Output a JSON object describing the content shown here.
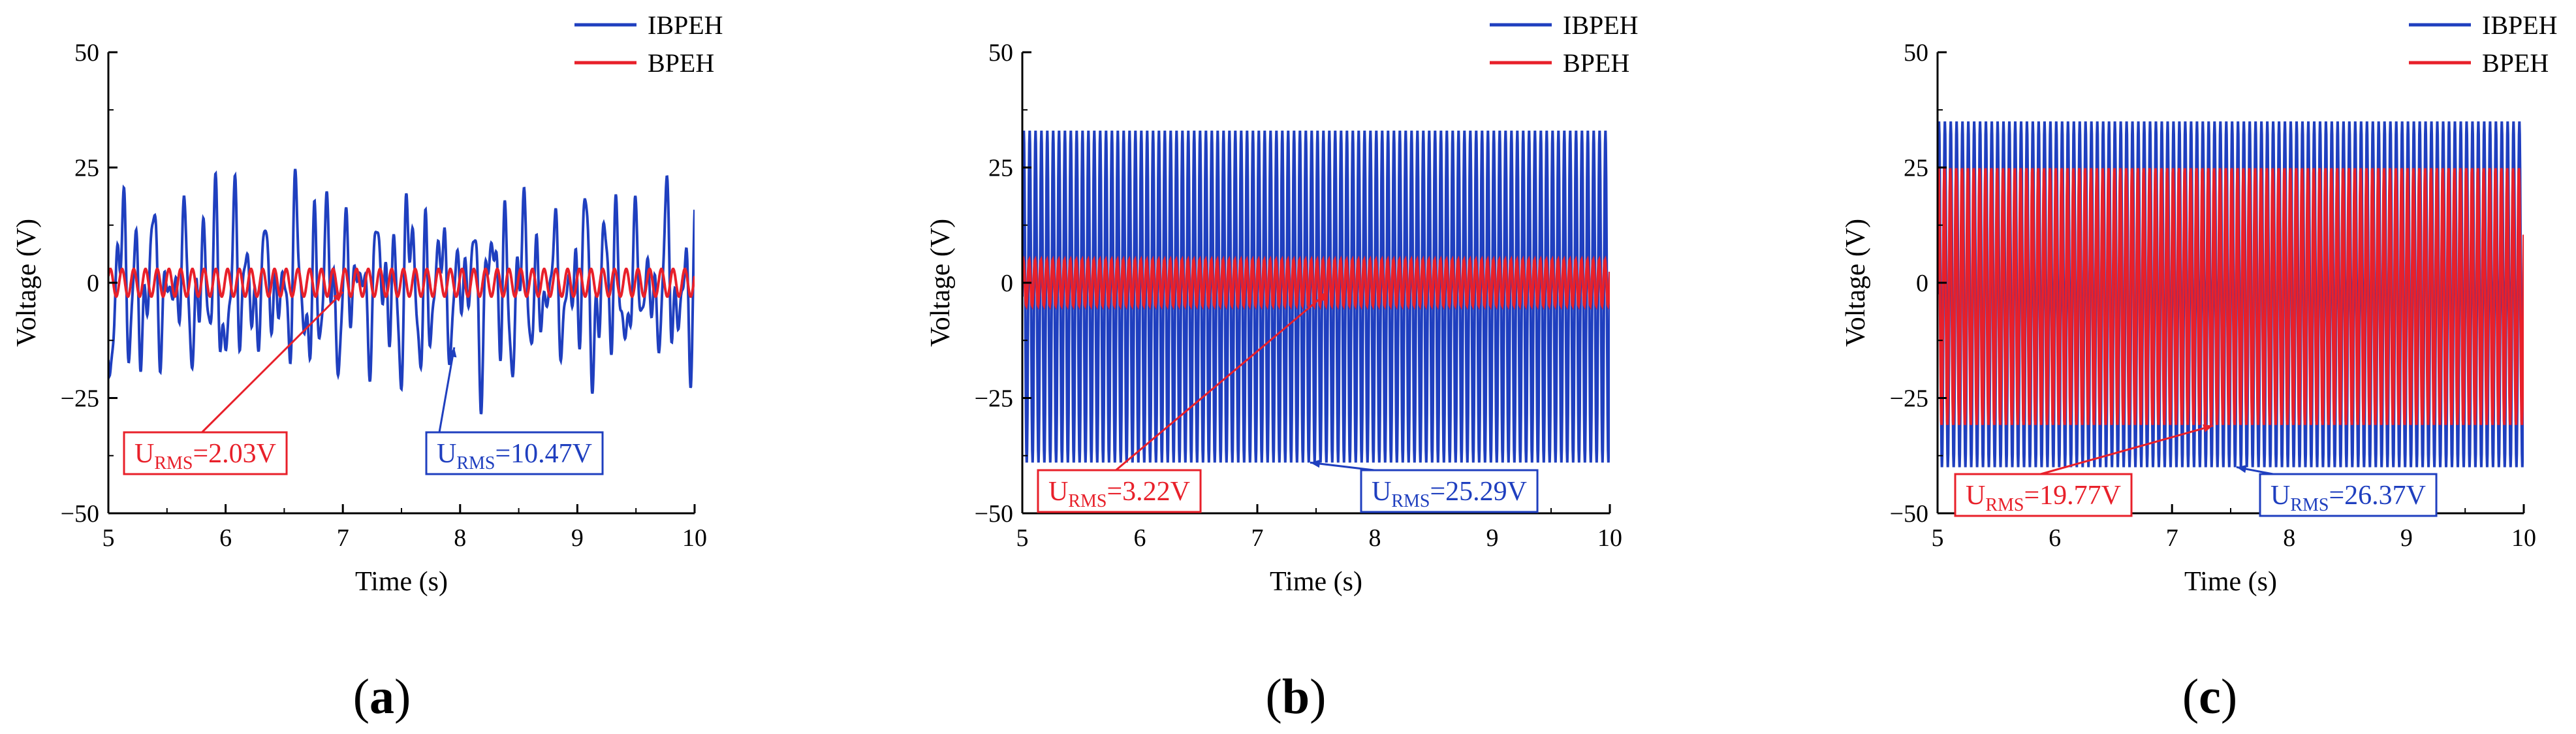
{
  "figure": {
    "captions": [
      "(",
      "a",
      ")",
      "(",
      "b",
      ")",
      "(",
      "c",
      ")"
    ],
    "colors": {
      "ibpeh": "#1f3fbf",
      "bpeh": "#e8202a",
      "axis": "#000000",
      "anno_bg": "#ffffff"
    }
  },
  "chart_data": [
    {
      "type": "line",
      "panel": "a",
      "caption": "(a)",
      "title": "",
      "xlabel": "Time (s)",
      "ylabel": "Voltage (V)",
      "xlim": [
        5,
        10
      ],
      "ylim": [
        -50,
        50
      ],
      "xticks": [
        "5",
        "6",
        "7",
        "8",
        "9",
        "10"
      ],
      "yticks": [
        "50",
        "25",
        "0",
        "−25",
        "−50"
      ],
      "legend": {
        "position": "top-right",
        "entries": [
          "IBPEH",
          "BPEH"
        ]
      },
      "series": [
        {
          "name": "IBPEH",
          "color": "#1f3fbf",
          "signal": "irregular",
          "approx_min": -24,
          "approx_max": 22,
          "rms_label": "10.47V"
        },
        {
          "name": "BPEH",
          "color": "#e8202a",
          "signal": "periodic",
          "approx_min": -3,
          "approx_max": 3,
          "oscillations_in_window": 50,
          "rms_label": "2.03V"
        }
      ],
      "annotations": [
        {
          "series": "BPEH",
          "prefix": "U",
          "subscript": "RMS",
          "value": "=2.03V",
          "points_to": [
            7.0,
            -2
          ],
          "location": "lower-left"
        },
        {
          "series": "IBPEH",
          "prefix": "U",
          "subscript": "RMS",
          "value": "=10.47V",
          "points_to": [
            7.95,
            -14
          ],
          "location": "lower-right"
        }
      ]
    },
    {
      "type": "line",
      "panel": "b",
      "caption": "(b)",
      "title": "",
      "xlabel": "Time (s)",
      "ylabel": "Voltage (V)",
      "xlim": [
        5,
        10
      ],
      "ylim": [
        -50,
        50
      ],
      "xticks": [
        "5",
        "6",
        "7",
        "8",
        "9",
        "10"
      ],
      "yticks": [
        "50",
        "25",
        "0",
        "−25",
        "−50"
      ],
      "legend": {
        "position": "top-right",
        "entries": [
          "IBPEH",
          "BPEH"
        ]
      },
      "series": [
        {
          "name": "IBPEH",
          "color": "#1f3fbf",
          "signal": "periodic",
          "approx_min": -39,
          "approx_max": 33,
          "oscillations_in_window": 100,
          "rms_label": "25.29V"
        },
        {
          "name": "BPEH",
          "color": "#e8202a",
          "signal": "periodic",
          "approx_min": -5,
          "approx_max": 5,
          "oscillations_in_window": 100,
          "rms_label": "3.22V"
        }
      ],
      "annotations": [
        {
          "series": "BPEH",
          "prefix": "U",
          "subscript": "RMS",
          "value": "=3.22V",
          "points_to": [
            7.6,
            -2
          ],
          "location": "lower-left"
        },
        {
          "series": "IBPEH",
          "prefix": "U",
          "subscript": "RMS",
          "value": "=25.29V",
          "points_to": [
            7.45,
            -39
          ],
          "location": "lower-right"
        }
      ]
    },
    {
      "type": "line",
      "panel": "c",
      "caption": "(c)",
      "title": "",
      "xlabel": "Time (s)",
      "ylabel": "Voltage (V)",
      "xlim": [
        5,
        10
      ],
      "ylim": [
        -50,
        50
      ],
      "xticks": [
        "5",
        "6",
        "7",
        "8",
        "9",
        "10"
      ],
      "yticks": [
        "50",
        "25",
        "0",
        "−25",
        "−50"
      ],
      "legend": {
        "position": "top-right",
        "entries": [
          "IBPEH",
          "BPEH"
        ]
      },
      "series": [
        {
          "name": "IBPEH",
          "color": "#1f3fbf",
          "signal": "periodic",
          "approx_min": -40,
          "approx_max": 35,
          "oscillations_in_window": 100,
          "rms_label": "26.37V"
        },
        {
          "name": "BPEH",
          "color": "#e8202a",
          "signal": "periodic",
          "approx_min": -31,
          "approx_max": 25,
          "oscillations_in_window": 100,
          "rms_label": "19.77V"
        }
      ],
      "annotations": [
        {
          "series": "BPEH",
          "prefix": "U",
          "subscript": "RMS",
          "value": "=19.77V",
          "points_to": [
            7.35,
            -31
          ],
          "location": "lower-left"
        },
        {
          "series": "IBPEH",
          "prefix": "U",
          "subscript": "RMS",
          "value": "=26.37V",
          "points_to": [
            7.55,
            -40
          ],
          "location": "lower-right"
        }
      ]
    }
  ]
}
